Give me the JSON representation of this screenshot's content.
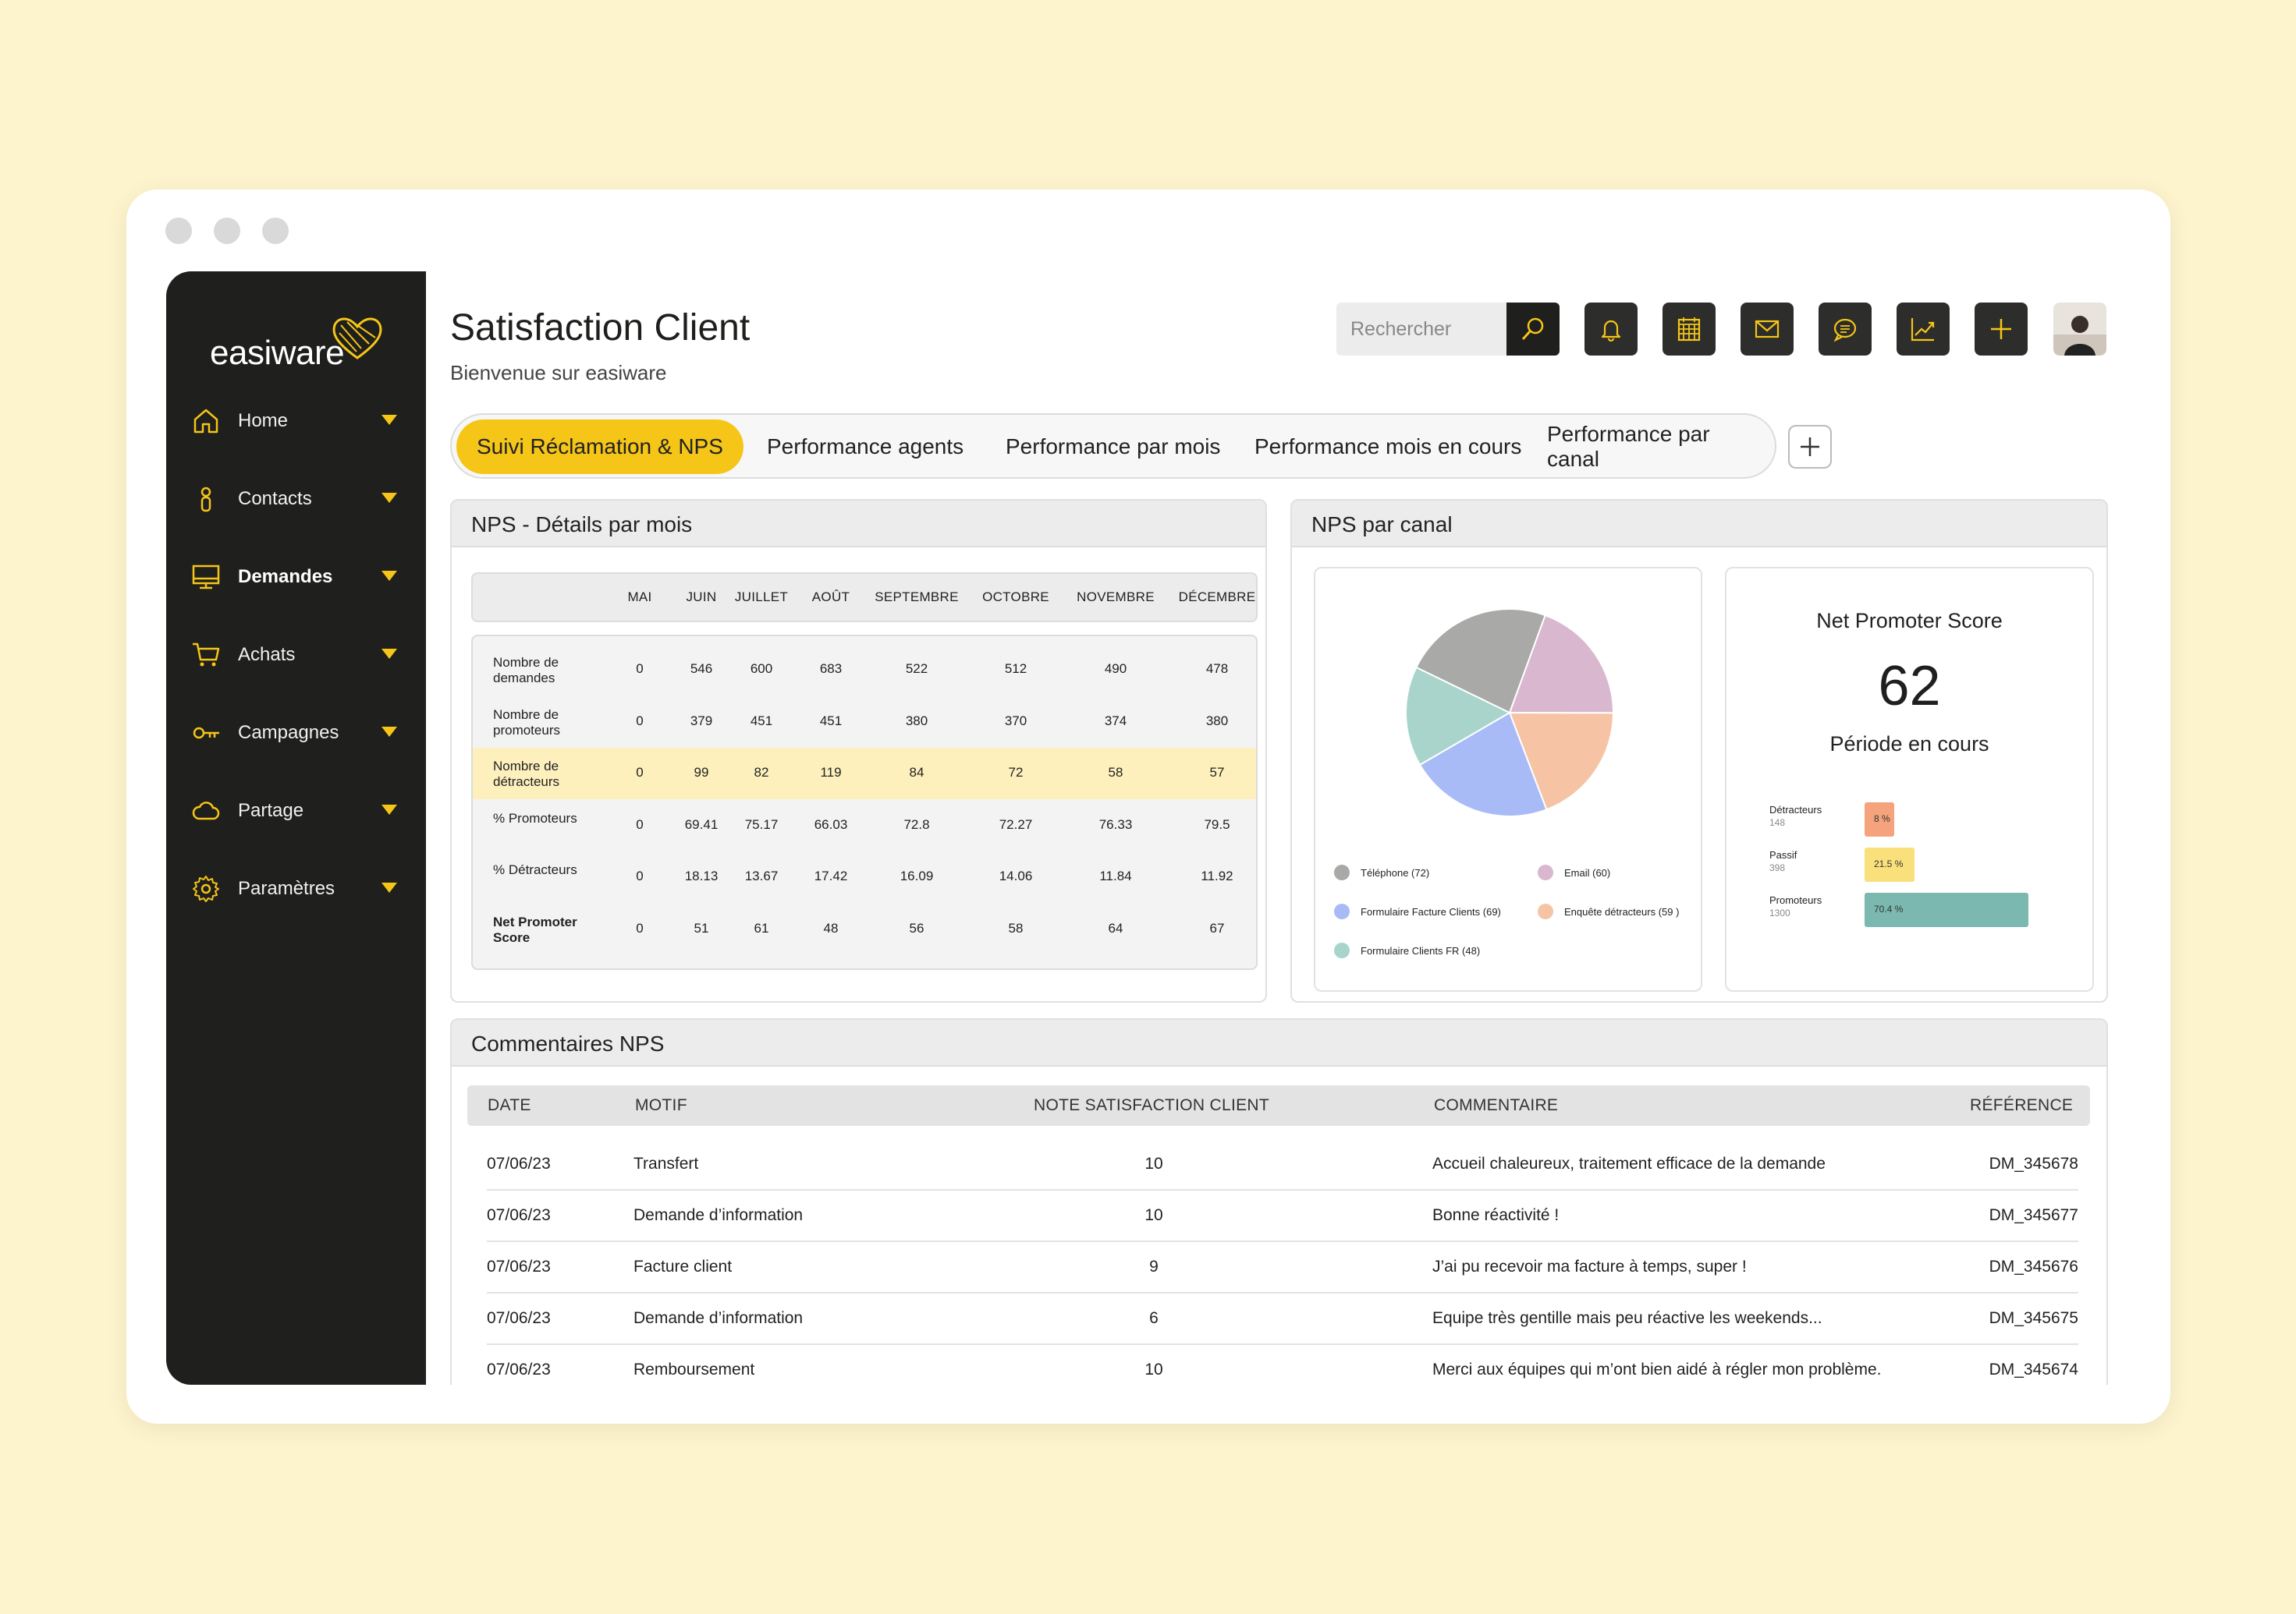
{
  "app": {
    "logo": "easiware",
    "title": "Satisfaction Client",
    "subtitle": "Bienvenue sur easiware"
  },
  "sidebar": {
    "items": [
      {
        "label": "Home",
        "icon": "home-icon"
      },
      {
        "label": "Contacts",
        "icon": "person-icon"
      },
      {
        "label": "Demandes",
        "icon": "monitor-icon",
        "active": true
      },
      {
        "label": "Achats",
        "icon": "cart-icon"
      },
      {
        "label": "Campagnes",
        "icon": "key-icon"
      },
      {
        "label": "Partage",
        "icon": "cloud-icon"
      },
      {
        "label": "Paramètres",
        "icon": "gear-icon"
      }
    ]
  },
  "toolbar": {
    "search_placeholder": "Rechercher",
    "icons": [
      "search-icon",
      "bell-icon",
      "calendar-icon",
      "mail-icon",
      "chat-icon",
      "chart-icon",
      "plus-icon"
    ]
  },
  "tabs": [
    {
      "label": "Suivi Réclamation & NPS",
      "active": true
    },
    {
      "label": "Performance agents"
    },
    {
      "label": "Performance par mois"
    },
    {
      "label": "Performance mois en cours"
    },
    {
      "label": "Performance par canal"
    }
  ],
  "nps_details": {
    "title": "NPS - Détails par mois",
    "months": [
      "MAI",
      "JUIN",
      "JUILLET",
      "AOÛT",
      "SEPTEMBRE",
      "OCTOBRE",
      "NOVEMBRE",
      "DÉCEMBRE"
    ],
    "rows": [
      {
        "label": "Nombre de demandes",
        "values": [
          "0",
          "546",
          "600",
          "683",
          "522",
          "512",
          "490",
          "478"
        ]
      },
      {
        "label": "Nombre de promoteurs",
        "values": [
          "0",
          "379",
          "451",
          "451",
          "380",
          "370",
          "374",
          "380"
        ]
      },
      {
        "label": "Nombre de détracteurs",
        "values": [
          "0",
          "99",
          "82",
          "119",
          "84",
          "72",
          "58",
          "57"
        ],
        "highlight": true
      },
      {
        "label": "% Promoteurs",
        "values": [
          "0",
          "69.41",
          "75.17",
          "66.03",
          "72.8",
          "72.27",
          "76.33",
          "79.5"
        ]
      },
      {
        "label": "% Détracteurs",
        "values": [
          "0",
          "18.13",
          "13.67",
          "17.42",
          "16.09",
          "14.06",
          "11.84",
          "11.92"
        ]
      },
      {
        "label": "Net Promoter Score",
        "values": [
          "0",
          "51",
          "61",
          "48",
          "56",
          "58",
          "64",
          "67"
        ],
        "bold": true
      }
    ]
  },
  "nps_canal": {
    "title": "NPS par canal",
    "legend": [
      {
        "label": "Téléphone (72)",
        "color": "#a9a9a7"
      },
      {
        "label": "Email (60)",
        "color": "#d9b8cf"
      },
      {
        "label": "Formulaire Facture Clients (69)",
        "color": "#a8bbf7"
      },
      {
        "label": "Enquête détracteurs (59 )",
        "color": "#f6c4a4"
      },
      {
        "label": "Formulaire Clients FR (48)",
        "color": "#a8d4cc"
      }
    ]
  },
  "chart_data": {
    "type": "pie",
    "title": "",
    "categories": [
      "Téléphone",
      "Email",
      "Formulaire Facture Clients",
      "Enquête détracteurs",
      "Formulaire Clients FR"
    ],
    "values": [
      72,
      60,
      69,
      59,
      48
    ],
    "colors": [
      "#a9a9a7",
      "#d9b8cf",
      "#a8bbf7",
      "#f6c4a4",
      "#a8d4cc"
    ]
  },
  "score": {
    "title": "Net Promoter Score",
    "value": "62",
    "period": "Période en cours",
    "bars": [
      {
        "label": "Détracteurs",
        "count": "148",
        "pct_label": "8 %",
        "pct": 8,
        "color": "#f4a37c"
      },
      {
        "label": "Passif",
        "count": "398",
        "pct_label": "21.5 %",
        "pct": 21.5,
        "color": "#f9e07a"
      },
      {
        "label": "Promoteurs",
        "count": "1300",
        "pct_label": "70.4 %",
        "pct": 70.4,
        "color": "#7ab8b0"
      }
    ]
  },
  "comments": {
    "title": "Commentaires NPS",
    "columns": [
      "DATE",
      "MOTIF",
      "NOTE SATISFACTION CLIENT",
      "COMMENTAIRE",
      "RÉFÉRENCE"
    ],
    "rows": [
      {
        "date": "07/06/23",
        "motif": "Transfert",
        "note": "10",
        "commentaire": "Accueil chaleureux, traitement efficace de la demande",
        "ref": "DM_345678"
      },
      {
        "date": "07/06/23",
        "motif": "Demande  d’information",
        "note": "10",
        "commentaire": "Bonne réactivité !",
        "ref": "DM_345677"
      },
      {
        "date": "07/06/23",
        "motif": "Facture client",
        "note": "9",
        "commentaire": "J’ai pu recevoir ma facture à temps, super !",
        "ref": "DM_345676"
      },
      {
        "date": "07/06/23",
        "motif": "Demande  d’information",
        "note": "6",
        "commentaire": "Equipe très gentille mais peu réactive les weekends...",
        "ref": "DM_345675"
      },
      {
        "date": "07/06/23",
        "motif": "Remboursement",
        "note": "10",
        "commentaire": "Merci aux équipes qui m’ont bien aidé à régler mon problème.",
        "ref": "DM_345674"
      }
    ]
  }
}
